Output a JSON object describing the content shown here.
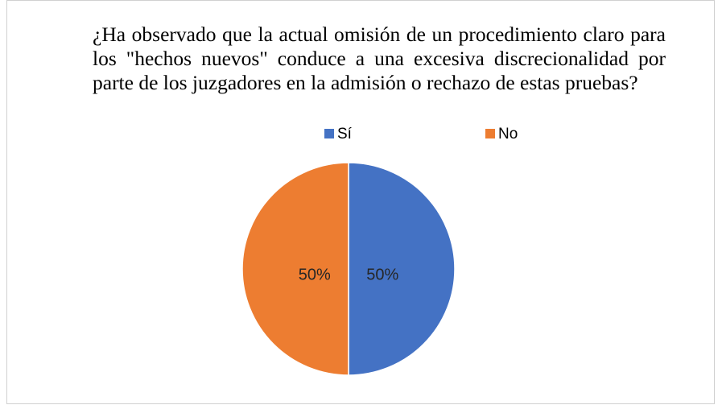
{
  "chart_data": {
    "type": "pie",
    "title": "¿Ha observado que la actual omisión de un procedimiento claro para los \"hechos nuevos\" conduce a una excesiva discrecionalidad por parte de los juzgadores en la admisión o rechazo de estas pruebas?",
    "categories": [
      "Sí",
      "No"
    ],
    "values": [
      50,
      50
    ],
    "value_labels": [
      "50%",
      "50%"
    ],
    "colors": [
      "#4472c4",
      "#ed7d31"
    ],
    "legend": "top"
  }
}
